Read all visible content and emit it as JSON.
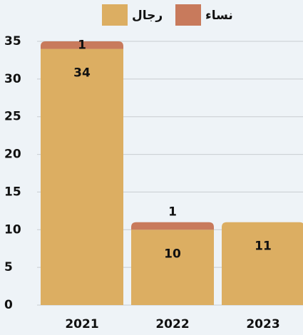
{
  "chart_data": {
    "type": "stacked_bar",
    "categories": [
      "2021",
      "2022",
      "2023"
    ],
    "series": [
      {
        "name": "رجال",
        "color": "#dcae62",
        "values": [
          34,
          10,
          11
        ]
      },
      {
        "name": "نساء",
        "color": "#c87a5c",
        "values": [
          1,
          1,
          null
        ]
      }
    ],
    "ylim": [
      0,
      35
    ],
    "yticks": [
      0,
      5,
      10,
      15,
      20,
      25,
      30,
      35
    ],
    "grid": true,
    "legend": "top"
  }
}
